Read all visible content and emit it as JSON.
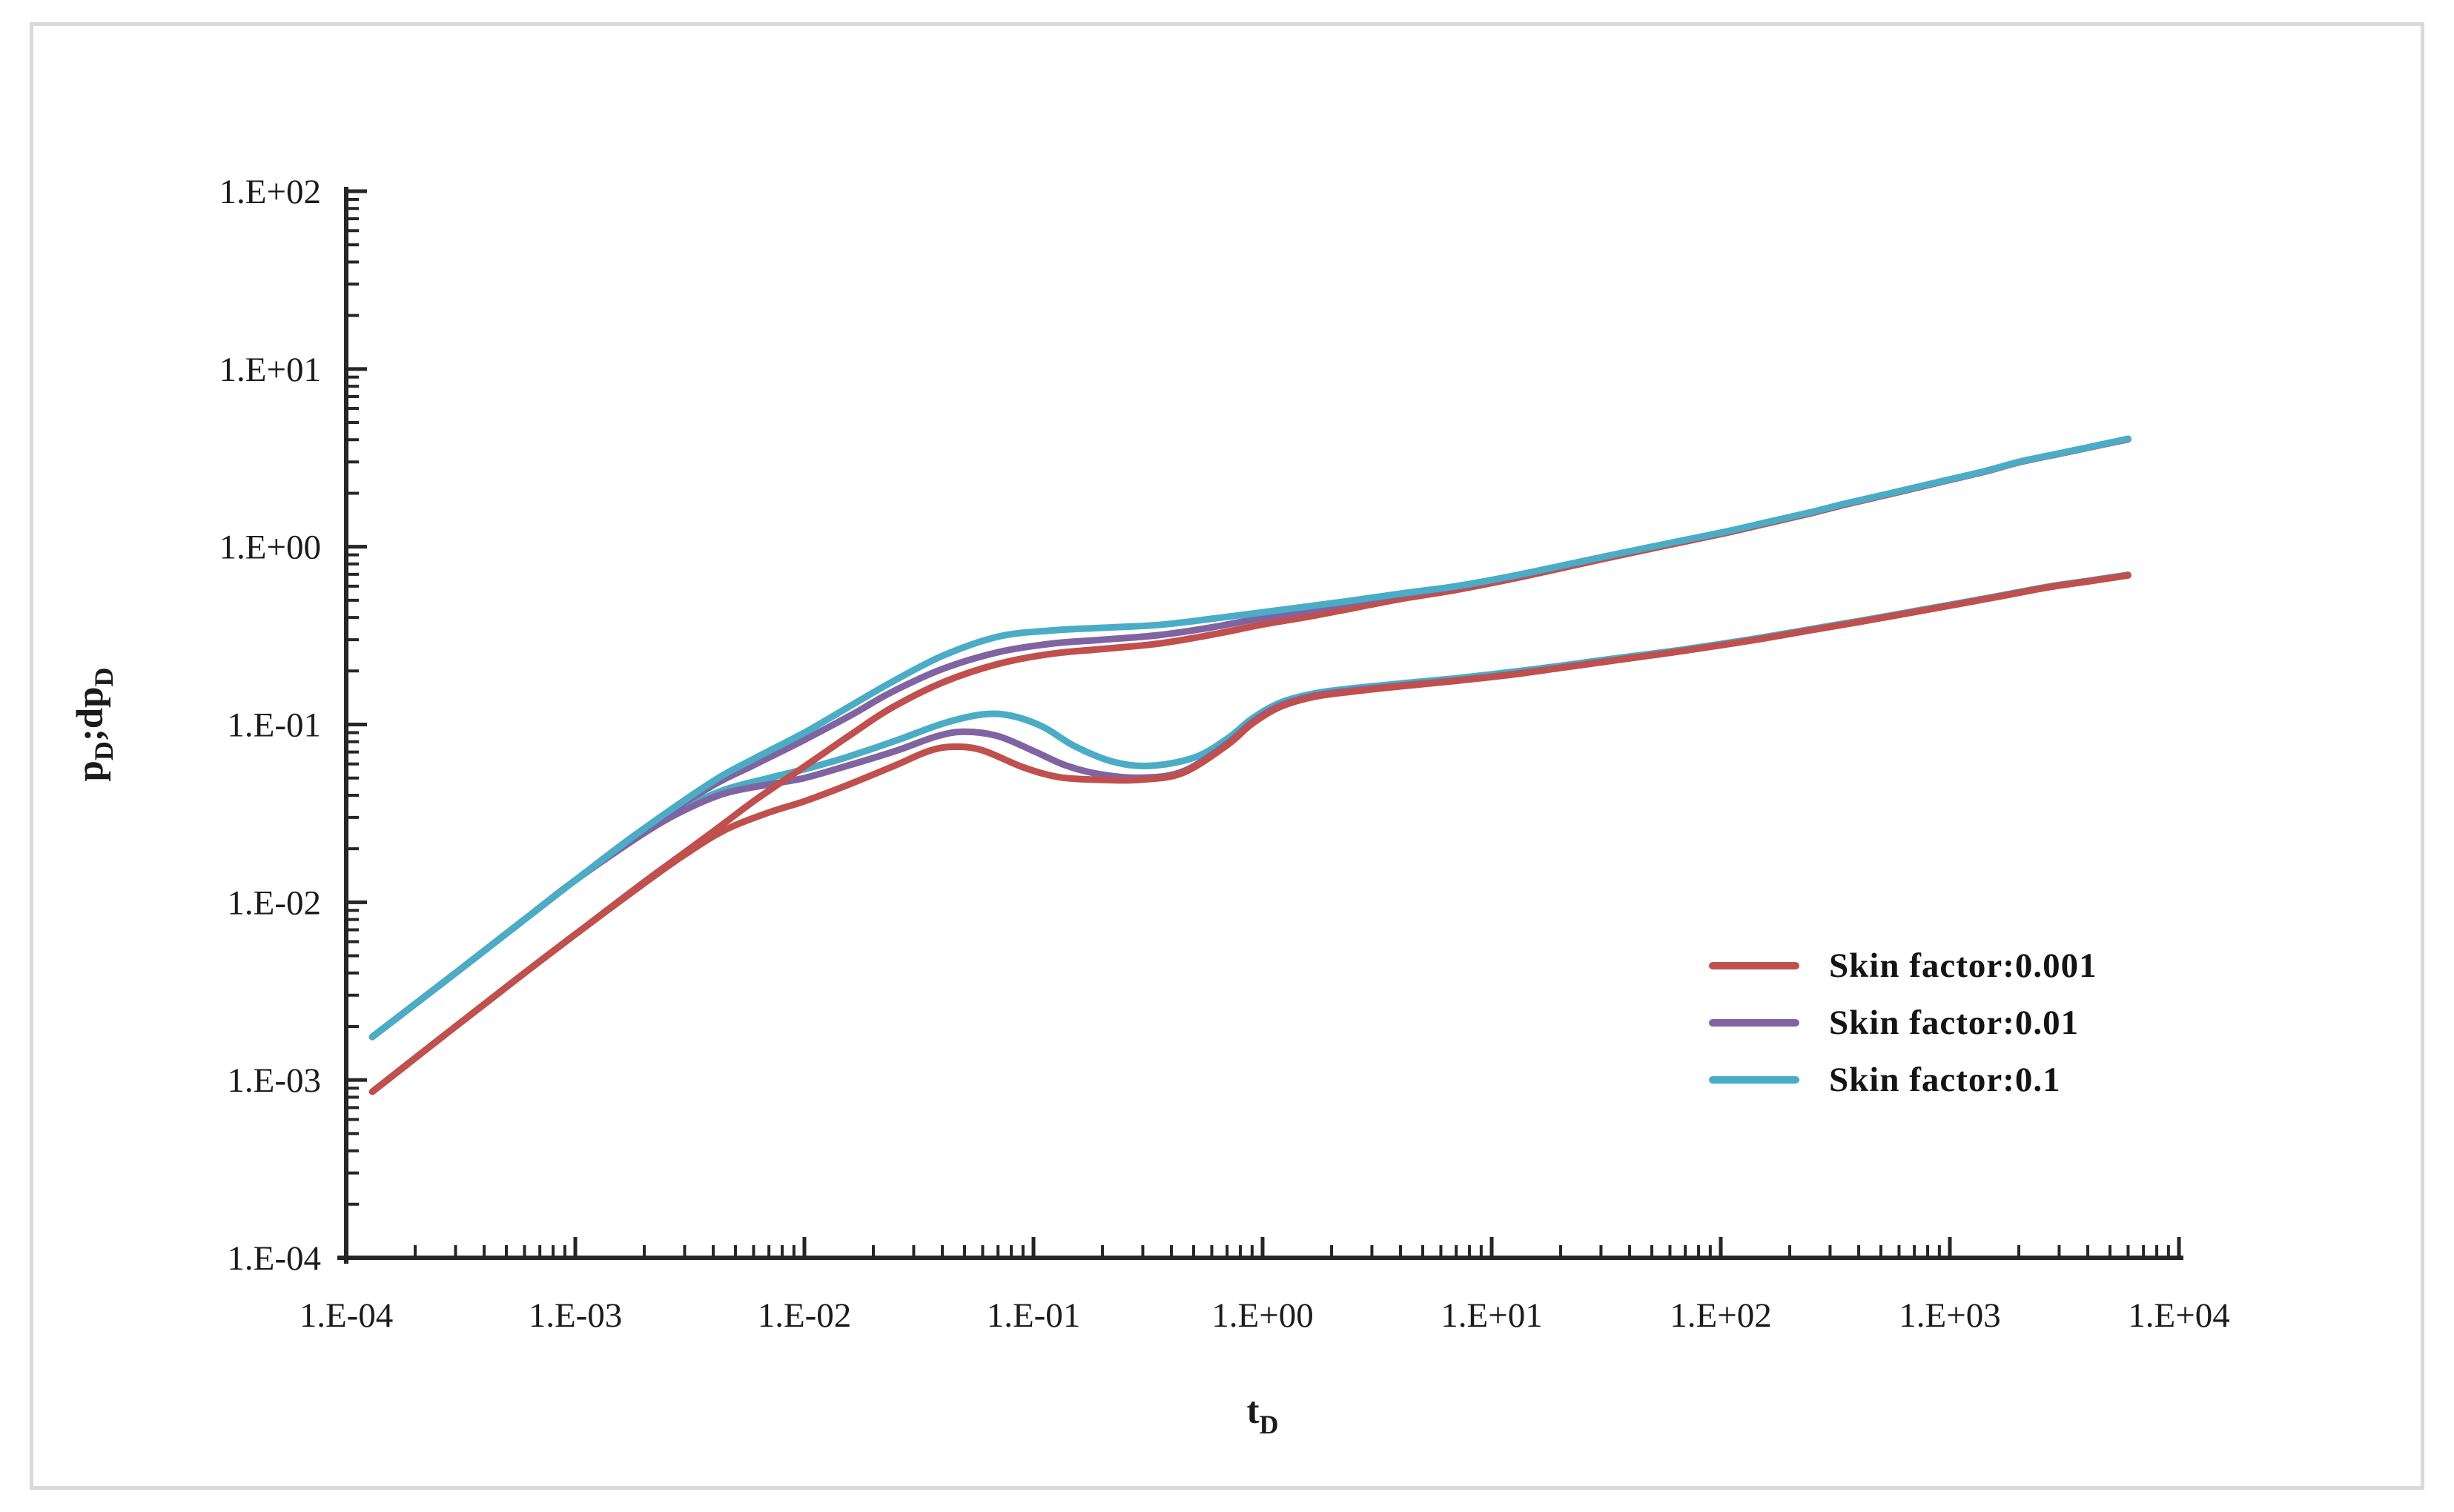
{
  "figure": {
    "background": "#ffffff",
    "frame_border_color": "#d9d9d9",
    "axis_color": "#262626",
    "text_color": "#1b1b1b"
  },
  "chart_data": {
    "type": "line",
    "title": "",
    "log_x": true,
    "log_y": true,
    "grid": false,
    "xlim": [
      0.0001,
      10000
    ],
    "ylim": [
      0.0001,
      100
    ],
    "xlabel": {
      "base": "t",
      "sub": "D"
    },
    "ylabel_parts": [
      {
        "base": "p",
        "sub": "D"
      },
      {
        "base": ";dp",
        "sub": "D"
      }
    ],
    "x_ticks": [
      {
        "label": "1.E-04",
        "value": 0.0001
      },
      {
        "label": "1.E-03",
        "value": 0.001
      },
      {
        "label": "1.E-02",
        "value": 0.01
      },
      {
        "label": "1.E-01",
        "value": 0.1
      },
      {
        "label": "1.E+00",
        "value": 1
      },
      {
        "label": "1.E+01",
        "value": 10
      },
      {
        "label": "1.E+02",
        "value": 100
      },
      {
        "label": "1.E+03",
        "value": 1000
      },
      {
        "label": "1.E+04",
        "value": 10000
      }
    ],
    "y_ticks": [
      {
        "label": "1.E+02",
        "value": 100
      },
      {
        "label": "1.E+01",
        "value": 10
      },
      {
        "label": "1.E+00",
        "value": 1
      },
      {
        "label": "1.E-01",
        "value": 0.1
      },
      {
        "label": "1.E-02",
        "value": 0.01
      },
      {
        "label": "1.E-03",
        "value": 0.001
      },
      {
        "label": "1.E-04",
        "value": 0.0001
      }
    ],
    "legend": {
      "position": "right-middle",
      "entries": [
        {
          "label": "Skin factor:0.001",
          "color": "#C0504D"
        },
        {
          "label": "Skin factor:0.01",
          "color": "#8064A2"
        },
        {
          "label": "Skin factor:0.1",
          "color": "#4BACC6"
        }
      ]
    },
    "series": [
      {
        "id": "derivative-skin-0.1",
        "legend": "Skin factor:0.1",
        "role": "derivative",
        "color": "#4BACC6",
        "points": [
          [
            0.00013,
            0.00175
          ],
          [
            0.0003,
            0.004
          ],
          [
            0.0006,
            0.008
          ],
          [
            0.001,
            0.0133
          ],
          [
            0.002,
            0.025
          ],
          [
            0.003,
            0.034
          ],
          [
            0.0045,
            0.043
          ],
          [
            0.007,
            0.05
          ],
          [
            0.01,
            0.056
          ],
          [
            0.015,
            0.065
          ],
          [
            0.025,
            0.081
          ],
          [
            0.04,
            0.101
          ],
          [
            0.06,
            0.114
          ],
          [
            0.08,
            0.112
          ],
          [
            0.11,
            0.097
          ],
          [
            0.15,
            0.076
          ],
          [
            0.22,
            0.062
          ],
          [
            0.32,
            0.0585
          ],
          [
            0.5,
            0.065
          ],
          [
            0.7,
            0.083
          ],
          [
            0.9,
            0.108
          ],
          [
            1.2,
            0.133
          ],
          [
            1.7,
            0.15
          ],
          [
            2.5,
            0.16
          ],
          [
            4,
            0.17
          ],
          [
            7,
            0.182
          ],
          [
            12,
            0.197
          ],
          [
            20,
            0.214
          ],
          [
            35,
            0.236
          ],
          [
            60,
            0.258
          ],
          [
            100,
            0.284
          ],
          [
            150,
            0.308
          ],
          [
            250,
            0.345
          ],
          [
            400,
            0.382
          ],
          [
            700,
            0.434
          ],
          [
            1100,
            0.482
          ],
          [
            1700,
            0.534
          ],
          [
            2700,
            0.597
          ],
          [
            4000,
            0.643
          ],
          [
            6000,
            0.695
          ]
        ]
      },
      {
        "id": "derivative-skin-0.01",
        "legend": "Skin factor:0.01",
        "role": "derivative",
        "color": "#8064A2",
        "points": [
          [
            0.00013,
            0.00175
          ],
          [
            0.0003,
            0.004
          ],
          [
            0.0006,
            0.008
          ],
          [
            0.001,
            0.0133
          ],
          [
            0.002,
            0.0245
          ],
          [
            0.003,
            0.033
          ],
          [
            0.0045,
            0.041
          ],
          [
            0.007,
            0.046
          ],
          [
            0.01,
            0.05
          ],
          [
            0.015,
            0.058
          ],
          [
            0.025,
            0.071
          ],
          [
            0.038,
            0.086
          ],
          [
            0.05,
            0.091
          ],
          [
            0.07,
            0.086
          ],
          [
            0.1,
            0.071
          ],
          [
            0.14,
            0.0585
          ],
          [
            0.2,
            0.0522
          ],
          [
            0.3,
            0.0502
          ],
          [
            0.45,
            0.0545
          ],
          [
            0.7,
            0.078
          ],
          [
            0.9,
            0.103
          ],
          [
            1.2,
            0.128
          ],
          [
            1.7,
            0.1455
          ],
          [
            2.5,
            0.1555
          ],
          [
            4,
            0.1655
          ],
          [
            7,
            0.177
          ],
          [
            12,
            0.191
          ],
          [
            20,
            0.209
          ],
          [
            35,
            0.2305
          ],
          [
            60,
            0.2535
          ],
          [
            100,
            0.2795
          ],
          [
            150,
            0.3035
          ],
          [
            250,
            0.3405
          ],
          [
            400,
            0.3775
          ],
          [
            700,
            0.4295
          ],
          [
            1100,
            0.4775
          ],
          [
            1700,
            0.5295
          ],
          [
            2700,
            0.5925
          ],
          [
            4000,
            0.6385
          ],
          [
            6000,
            0.6905
          ]
        ]
      },
      {
        "id": "derivative-skin-0.001",
        "legend": "Skin factor:0.001",
        "role": "derivative",
        "color": "#C0504D",
        "points": [
          [
            0.00013,
            0.00086
          ],
          [
            0.0003,
            0.002
          ],
          [
            0.0006,
            0.004
          ],
          [
            0.001,
            0.0066
          ],
          [
            0.002,
            0.0128
          ],
          [
            0.003,
            0.0185
          ],
          [
            0.0045,
            0.0255
          ],
          [
            0.007,
            0.032
          ],
          [
            0.01,
            0.037
          ],
          [
            0.015,
            0.045
          ],
          [
            0.025,
            0.059
          ],
          [
            0.035,
            0.071
          ],
          [
            0.045,
            0.075
          ],
          [
            0.06,
            0.0715
          ],
          [
            0.09,
            0.0575
          ],
          [
            0.13,
            0.0505
          ],
          [
            0.2,
            0.0488
          ],
          [
            0.3,
            0.049
          ],
          [
            0.45,
            0.0535
          ],
          [
            0.7,
            0.0765
          ],
          [
            0.9,
            0.101
          ],
          [
            1.2,
            0.126
          ],
          [
            1.7,
            0.1435
          ],
          [
            2.5,
            0.1535
          ],
          [
            4,
            0.164
          ],
          [
            7,
            0.176
          ],
          [
            12,
            0.19
          ],
          [
            20,
            0.208
          ],
          [
            35,
            0.23
          ],
          [
            60,
            0.253
          ],
          [
            100,
            0.279
          ],
          [
            150,
            0.303
          ],
          [
            250,
            0.34
          ],
          [
            400,
            0.377
          ],
          [
            700,
            0.429
          ],
          [
            1100,
            0.477
          ],
          [
            1700,
            0.529
          ],
          [
            2700,
            0.592
          ],
          [
            4000,
            0.638
          ],
          [
            6000,
            0.69
          ]
        ]
      },
      {
        "id": "pressure-skin-0.001",
        "legend": "Skin factor:0.001",
        "role": "pressure",
        "color": "#C0504D",
        "points": [
          [
            0.00013,
            0.00086
          ],
          [
            0.0003,
            0.002
          ],
          [
            0.0006,
            0.004
          ],
          [
            0.001,
            0.0066
          ],
          [
            0.002,
            0.013
          ],
          [
            0.004,
            0.025
          ],
          [
            0.006,
            0.037
          ],
          [
            0.01,
            0.058
          ],
          [
            0.016,
            0.088
          ],
          [
            0.024,
            0.124
          ],
          [
            0.04,
            0.172
          ],
          [
            0.07,
            0.219
          ],
          [
            0.12,
            0.25
          ],
          [
            0.2,
            0.266
          ],
          [
            0.35,
            0.285
          ],
          [
            0.6,
            0.32
          ],
          [
            1,
            0.365
          ],
          [
            1.6,
            0.405
          ],
          [
            2.5,
            0.452
          ],
          [
            4,
            0.508
          ],
          [
            7,
            0.572
          ],
          [
            12,
            0.655
          ],
          [
            20,
            0.756
          ],
          [
            35,
            0.886
          ],
          [
            60,
            1.026
          ],
          [
            100,
            1.178
          ],
          [
            150,
            1.328
          ],
          [
            250,
            1.548
          ],
          [
            350,
            1.728
          ],
          [
            550,
            1.978
          ],
          [
            900,
            2.3
          ],
          [
            1400,
            2.63
          ],
          [
            2000,
            2.98
          ],
          [
            3000,
            3.33
          ],
          [
            4000,
            3.6
          ],
          [
            5000,
            3.83
          ],
          [
            6000,
            4.02
          ]
        ]
      },
      {
        "id": "pressure-skin-0.01",
        "legend": "Skin factor:0.01",
        "role": "pressure",
        "color": "#8064A2",
        "points": [
          [
            0.00013,
            0.00175
          ],
          [
            0.0003,
            0.004
          ],
          [
            0.0006,
            0.008
          ],
          [
            0.001,
            0.0133
          ],
          [
            0.002,
            0.026
          ],
          [
            0.004,
            0.0455
          ],
          [
            0.006,
            0.059
          ],
          [
            0.01,
            0.082
          ],
          [
            0.016,
            0.113
          ],
          [
            0.024,
            0.152
          ],
          [
            0.04,
            0.205
          ],
          [
            0.07,
            0.255
          ],
          [
            0.12,
            0.285
          ],
          [
            0.2,
            0.3
          ],
          [
            0.35,
            0.318
          ],
          [
            0.6,
            0.352
          ],
          [
            1,
            0.398
          ],
          [
            1.6,
            0.44
          ],
          [
            2.5,
            0.487
          ],
          [
            4,
            0.538
          ],
          [
            7,
            0.596
          ],
          [
            12,
            0.676
          ],
          [
            20,
            0.776
          ],
          [
            35,
            0.906
          ],
          [
            60,
            1.046
          ],
          [
            100,
            1.196
          ],
          [
            150,
            1.346
          ],
          [
            250,
            1.566
          ],
          [
            350,
            1.746
          ],
          [
            550,
            1.996
          ],
          [
            900,
            2.316
          ],
          [
            1400,
            2.646
          ],
          [
            2000,
            2.996
          ],
          [
            3000,
            3.346
          ],
          [
            4000,
            3.616
          ],
          [
            5000,
            3.846
          ],
          [
            6000,
            4.046
          ]
        ]
      },
      {
        "id": "pressure-skin-0.1",
        "legend": "Skin factor:0.1",
        "role": "pressure",
        "color": "#4BACC6",
        "points": [
          [
            0.00013,
            0.00175
          ],
          [
            0.0003,
            0.004
          ],
          [
            0.0006,
            0.008
          ],
          [
            0.001,
            0.0133
          ],
          [
            0.002,
            0.026
          ],
          [
            0.004,
            0.048
          ],
          [
            0.006,
            0.064
          ],
          [
            0.01,
            0.09
          ],
          [
            0.016,
            0.128
          ],
          [
            0.024,
            0.173
          ],
          [
            0.04,
            0.243
          ],
          [
            0.07,
            0.312
          ],
          [
            0.12,
            0.338
          ],
          [
            0.2,
            0.35
          ],
          [
            0.35,
            0.363
          ],
          [
            0.6,
            0.393
          ],
          [
            1,
            0.428
          ],
          [
            1.6,
            0.463
          ],
          [
            2.5,
            0.5
          ],
          [
            4,
            0.545
          ],
          [
            7,
            0.6
          ],
          [
            12,
            0.68
          ],
          [
            20,
            0.78
          ],
          [
            35,
            0.91
          ],
          [
            60,
            1.05
          ],
          [
            100,
            1.2
          ],
          [
            150,
            1.35
          ],
          [
            250,
            1.57
          ],
          [
            350,
            1.75
          ],
          [
            550,
            2.0
          ],
          [
            900,
            2.32
          ],
          [
            1400,
            2.65
          ],
          [
            2000,
            3.0
          ],
          [
            3000,
            3.35
          ],
          [
            4000,
            3.62
          ],
          [
            5000,
            3.85
          ],
          [
            6000,
            4.05
          ]
        ]
      }
    ]
  }
}
